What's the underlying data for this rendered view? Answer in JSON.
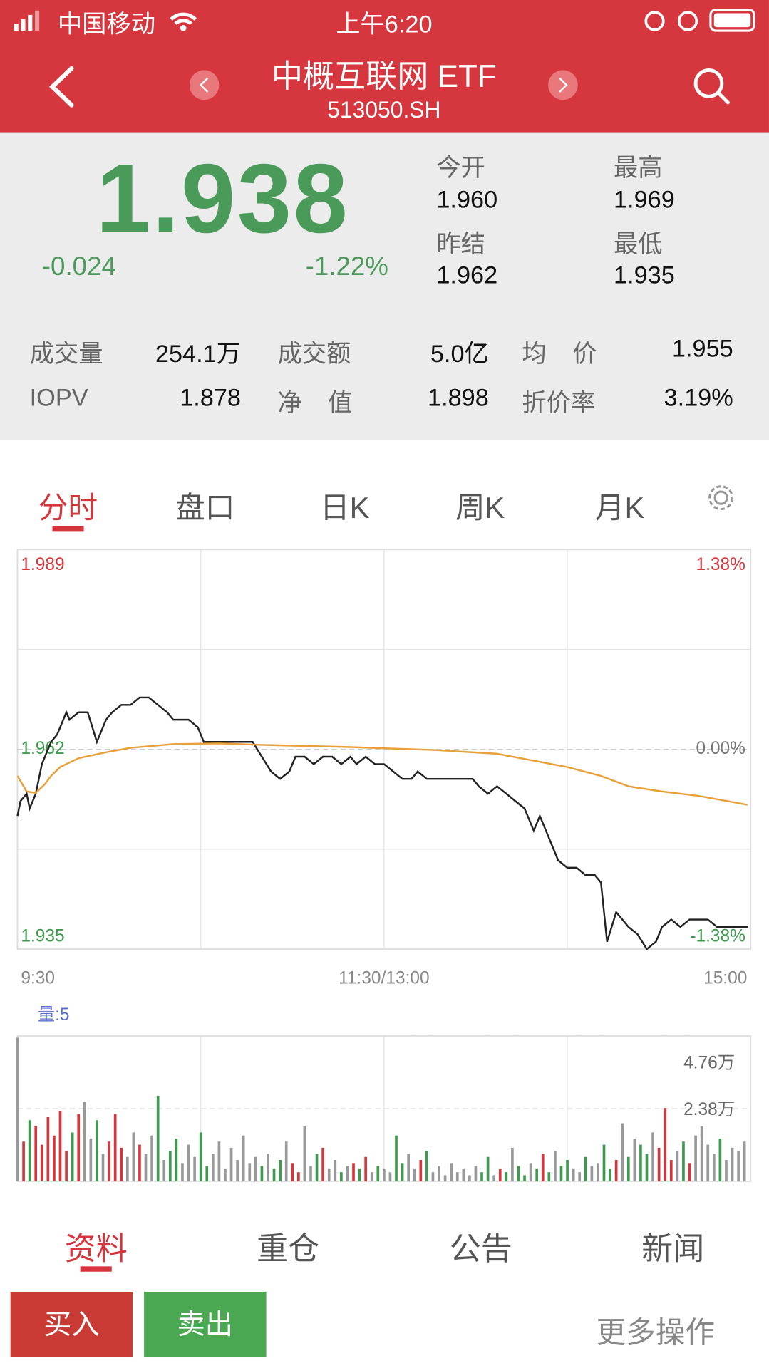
{
  "status_bar": {
    "carrier": "中国移动",
    "time": "上午6:20"
  },
  "header": {
    "title": "中概互联网 ETF",
    "code": "513050.SH"
  },
  "quote": {
    "price": "1.938",
    "change": "-0.024",
    "change_pct": "-1.22%",
    "fields": [
      {
        "label": "今开",
        "value": "1.960"
      },
      {
        "label": "最高",
        "value": "1.969"
      },
      {
        "label": "昨结",
        "value": "1.962"
      },
      {
        "label": "最低",
        "value": "1.935"
      }
    ]
  },
  "stats": [
    [
      {
        "label": "成交量",
        "value": "254.1万"
      },
      {
        "label": "成交额",
        "value": "5.0亿"
      },
      {
        "label": "均 价",
        "value": "1.955"
      }
    ],
    [
      {
        "label": "IOPV",
        "value": "1.878"
      },
      {
        "label": "净 值",
        "value": "1.898"
      },
      {
        "label": "折价率",
        "value": "3.19%"
      }
    ]
  ],
  "tabs": [
    "分时",
    "盘口",
    "日K",
    "周K",
    "月K"
  ],
  "chart_data": [
    {
      "type": "line",
      "xlim": [
        0,
        240
      ],
      "xticks": [
        {
          "value": 0,
          "label": "9:30"
        },
        {
          "value": 120,
          "label": "11:30/13:00"
        },
        {
          "value": 240,
          "label": "15:00"
        }
      ],
      "ylim": [
        1.935,
        1.989
      ],
      "yticks": [
        1.935,
        1.962,
        1.989
      ],
      "y2lim": [
        -1.38,
        1.38
      ],
      "y2ticks": [
        {
          "value": 1.38,
          "label": "1.38%"
        },
        {
          "value": 0,
          "label": "0.00%"
        },
        {
          "value": -1.38,
          "label": "-1.38%"
        }
      ],
      "up_color": "#d4363c",
      "down_color": "#3f9a4f",
      "flat_color": "#777",
      "series": [
        {
          "color": "#222222",
          "x": [
            0,
            1,
            3,
            4,
            6,
            8,
            10,
            11,
            13,
            14,
            16,
            17,
            20,
            23,
            26,
            29,
            31,
            34,
            37,
            40,
            43,
            46,
            49,
            51,
            56,
            59,
            61,
            64,
            69,
            73,
            77,
            80,
            83,
            86,
            89,
            91,
            94,
            97,
            100,
            103,
            106,
            109,
            111,
            114,
            117,
            120,
            123,
            126,
            129,
            131,
            134,
            137,
            140,
            143,
            146,
            149,
            151,
            154,
            157,
            160,
            163,
            166,
            169,
            171,
            174,
            177,
            180,
            183,
            186,
            189,
            191,
            193,
            196,
            200,
            203,
            206,
            209,
            211,
            214,
            217,
            220,
            223,
            226,
            229,
            231,
            234,
            237,
            239
          ],
          "values": [
            1.953,
            1.955,
            1.956,
            1.954,
            1.956,
            1.96,
            1.962,
            1.963,
            1.964,
            1.965,
            1.967,
            1.966,
            1.967,
            1.967,
            1.963,
            1.966,
            1.967,
            1.968,
            1.968,
            1.969,
            1.969,
            1.968,
            1.967,
            1.966,
            1.966,
            1.965,
            1.963,
            1.963,
            1.963,
            1.963,
            1.963,
            1.961,
            1.959,
            1.958,
            1.959,
            1.961,
            1.961,
            1.96,
            1.961,
            1.961,
            1.96,
            1.961,
            1.96,
            1.961,
            1.96,
            1.96,
            1.959,
            1.958,
            1.958,
            1.959,
            1.958,
            1.958,
            1.958,
            1.958,
            1.958,
            1.958,
            1.957,
            1.956,
            1.957,
            1.956,
            1.955,
            1.954,
            1.951,
            1.953,
            1.95,
            1.947,
            1.946,
            1.946,
            1.945,
            1.945,
            1.944,
            1.936,
            1.94,
            1.938,
            1.937,
            1.935,
            1.936,
            1.938,
            1.939,
            1.938,
            1.939,
            1.939,
            1.939,
            1.938,
            1.938,
            1.938,
            1.938,
            1.938
          ]
        },
        {
          "color": "#e8a03a",
          "x": [
            0,
            3,
            6,
            9,
            11,
            14,
            20,
            29,
            37,
            51,
            66,
            80,
            109,
            137,
            157,
            166,
            180,
            191,
            200,
            211,
            223,
            239
          ],
          "values": [
            1.9584,
            1.9563,
            1.9561,
            1.9573,
            1.9584,
            1.9596,
            1.9608,
            1.9616,
            1.9622,
            1.9627,
            1.9628,
            1.9626,
            1.9623,
            1.9619,
            1.9614,
            1.9607,
            1.9596,
            1.9584,
            1.957,
            1.9563,
            1.9557,
            1.9545
          ]
        }
      ]
    },
    {
      "type": "bar",
      "title": "量:5",
      "xlim": [
        0,
        240
      ],
      "ylim": [
        0,
        4.76
      ],
      "yticks": [
        {
          "value": 4.76,
          "label": "4.76万"
        },
        {
          "value": 2.38,
          "label": "2.38万"
        }
      ],
      "up_color": "#d4363c",
      "down_color": "#3f9a4f",
      "flat_color": "#999999",
      "x": [
        0,
        2,
        4,
        6,
        8,
        10,
        12,
        14,
        16,
        18,
        20,
        22,
        24,
        26,
        28,
        30,
        32,
        34,
        36,
        38,
        40,
        42,
        44,
        46,
        48,
        50,
        52,
        54,
        56,
        58,
        60,
        62,
        64,
        66,
        68,
        70,
        72,
        74,
        76,
        78,
        80,
        82,
        84,
        86,
        88,
        90,
        92,
        94,
        96,
        98,
        100,
        102,
        104,
        106,
        108,
        110,
        112,
        114,
        116,
        118,
        120,
        122,
        124,
        126,
        128,
        130,
        132,
        134,
        136,
        138,
        140,
        142,
        144,
        146,
        148,
        150,
        152,
        154,
        156,
        158,
        160,
        162,
        164,
        166,
        168,
        170,
        172,
        174,
        176,
        178,
        180,
        182,
        184,
        186,
        188,
        190,
        192,
        194,
        196,
        198,
        200,
        202,
        204,
        206,
        208,
        210,
        212,
        214,
        216,
        218,
        220,
        222,
        224,
        226,
        228,
        230,
        232,
        234,
        236,
        238
      ],
      "values": [
        4.7,
        1.3,
        2.0,
        1.8,
        1.2,
        2.1,
        1.5,
        2.3,
        1.0,
        1.6,
        2.2,
        2.6,
        1.4,
        2.0,
        0.9,
        1.3,
        2.2,
        1.1,
        0.8,
        1.6,
        1.2,
        0.9,
        1.5,
        2.8,
        0.7,
        1.0,
        1.4,
        0.6,
        1.2,
        0.8,
        1.6,
        0.5,
        0.9,
        1.3,
        0.4,
        1.1,
        0.7,
        1.5,
        0.6,
        0.8,
        0.5,
        0.9,
        0.4,
        0.7,
        1.3,
        0.6,
        0.3,
        1.8,
        0.5,
        0.9,
        1.1,
        0.4,
        0.7,
        0.3,
        0.5,
        0.6,
        0.4,
        0.8,
        0.3,
        0.5,
        0.4,
        0.3,
        1.5,
        0.6,
        0.9,
        0.4,
        0.7,
        1.0,
        0.3,
        0.5,
        0.2,
        0.6,
        0.3,
        0.4,
        0.2,
        0.5,
        0.3,
        0.8,
        0.2,
        0.4,
        0.3,
        1.1,
        0.5,
        0.2,
        0.6,
        0.4,
        0.9,
        0.3,
        1.0,
        0.5,
        0.7,
        0.4,
        0.3,
        0.8,
        0.5,
        0.6,
        1.2,
        0.4,
        0.7,
        1.9,
        0.8,
        1.4,
        1.2,
        0.9,
        1.6,
        1.1,
        2.4,
        0.7,
        1.0,
        1.3,
        0.6,
        1.5,
        1.8,
        1.2,
        0.9,
        1.4,
        0.7,
        1.1,
        1.0,
        1.3
      ]
    }
  ],
  "bottom_tabs": [
    "资料",
    "重仓",
    "公告",
    "新闻"
  ],
  "actions": {
    "buy": "买入",
    "sell": "卖出",
    "more": "更多操作"
  }
}
